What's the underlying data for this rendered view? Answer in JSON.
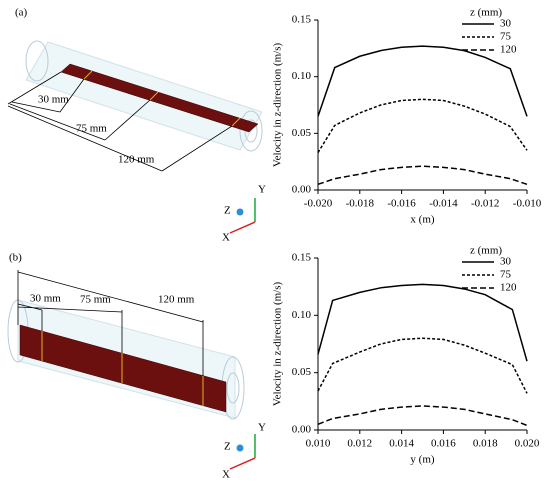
{
  "chart_data": [
    {
      "type": "line",
      "ylabel": "Velocity in z-direction (m/s)",
      "xlabel": "x (m)",
      "legend_title": "z (mm)",
      "legend": "upper-right",
      "x": [
        -0.02,
        -0.0192,
        -0.018,
        -0.017,
        -0.016,
        -0.015,
        -0.014,
        -0.013,
        -0.012,
        -0.0108,
        -0.01
      ],
      "series": [
        {
          "name": "30",
          "color": "#000000",
          "dash": "solid",
          "values": [
            0.065,
            0.108,
            0.118,
            0.123,
            0.126,
            0.127,
            0.126,
            0.123,
            0.117,
            0.107,
            0.065
          ]
        },
        {
          "name": "75",
          "color": "#000000",
          "dash": "short",
          "values": [
            0.033,
            0.057,
            0.068,
            0.075,
            0.079,
            0.08,
            0.079,
            0.074,
            0.067,
            0.056,
            0.035
          ]
        },
        {
          "name": "120",
          "color": "#000000",
          "dash": "long",
          "values": [
            0.005,
            0.01,
            0.014,
            0.018,
            0.02,
            0.021,
            0.02,
            0.018,
            0.014,
            0.01,
            0.005
          ]
        }
      ],
      "xlim": [
        -0.02,
        -0.01
      ],
      "xticks": [
        {
          "value": -0.02,
          "label": "-0.020"
        },
        {
          "value": -0.018,
          "label": "-0.018"
        },
        {
          "value": -0.016,
          "label": "-0.016"
        },
        {
          "value": -0.014,
          "label": "-0.014"
        },
        {
          "value": -0.012,
          "label": "-0.012"
        },
        {
          "value": -0.01,
          "label": "-0.010"
        }
      ],
      "ylim": [
        0,
        0.15
      ],
      "yticks": [
        {
          "value": 0,
          "label": "0.00"
        },
        {
          "value": 0.05,
          "label": "0.05"
        },
        {
          "value": 0.1,
          "label": "0.10"
        },
        {
          "value": 0.15,
          "label": "0.15"
        }
      ]
    },
    {
      "type": "line",
      "ylabel": "Velocity in z-direction (m/s)",
      "xlabel": "y (m)",
      "legend_title": "z (mm)",
      "legend": "upper-right",
      "x": [
        0.01,
        0.0107,
        0.012,
        0.013,
        0.014,
        0.015,
        0.016,
        0.017,
        0.018,
        0.0193,
        0.02
      ],
      "series": [
        {
          "name": "30",
          "color": "#000000",
          "dash": "solid",
          "values": [
            0.066,
            0.113,
            0.12,
            0.124,
            0.126,
            0.127,
            0.126,
            0.123,
            0.118,
            0.105,
            0.06
          ]
        },
        {
          "name": "75",
          "color": "#000000",
          "dash": "short",
          "values": [
            0.034,
            0.058,
            0.068,
            0.075,
            0.079,
            0.08,
            0.079,
            0.074,
            0.067,
            0.057,
            0.032
          ]
        },
        {
          "name": "120",
          "color": "#000000",
          "dash": "long",
          "values": [
            0.005,
            0.01,
            0.014,
            0.018,
            0.02,
            0.021,
            0.02,
            0.018,
            0.014,
            0.009,
            0.004
          ]
        }
      ],
      "xlim": [
        0.01,
        0.02
      ],
      "xticks": [
        {
          "value": 0.01,
          "label": "0.010"
        },
        {
          "value": 0.012,
          "label": "0.012"
        },
        {
          "value": 0.014,
          "label": "0.014"
        },
        {
          "value": 0.016,
          "label": "0.016"
        },
        {
          "value": 0.018,
          "label": "0.018"
        },
        {
          "value": 0.02,
          "label": "0.020"
        }
      ],
      "ylim": [
        0,
        0.15
      ],
      "yticks": [
        {
          "value": 0,
          "label": "0.00"
        },
        {
          "value": 0.05,
          "label": "0.05"
        },
        {
          "value": 0.1,
          "label": "0.10"
        },
        {
          "value": 0.15,
          "label": "0.15"
        }
      ]
    }
  ],
  "panels": [
    {
      "label": "(a)",
      "dimensions": [
        "30 mm",
        "75 mm",
        "120 mm"
      ],
      "axes": [
        "X",
        "Y",
        "Z"
      ]
    },
    {
      "label": "(b)",
      "dimensions": [
        "30 mm",
        "75 mm",
        "120 mm"
      ],
      "axes": [
        "X",
        "Y",
        "Z"
      ]
    }
  ]
}
